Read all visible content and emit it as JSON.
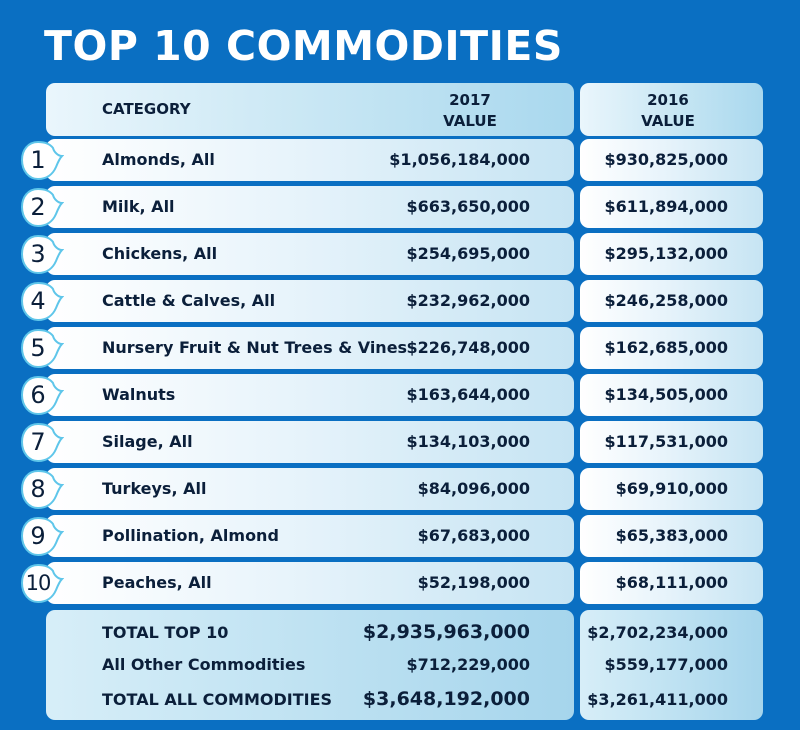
{
  "title": "TOP 10 COMMODITIES",
  "header": {
    "category": "CATEGORY",
    "year_2017": "2017",
    "year_2016": "2016",
    "value_label": "VALUE"
  },
  "rows": [
    {
      "rank": "1",
      "category": "Almonds, All",
      "value_2017": "$1,056,184,000",
      "value_2016": "$930,825,000"
    },
    {
      "rank": "2",
      "category": "Milk, All",
      "value_2017": "$663,650,000",
      "value_2016": "$611,894,000"
    },
    {
      "rank": "3",
      "category": "Chickens, All",
      "value_2017": "$254,695,000",
      "value_2016": "$295,132,000"
    },
    {
      "rank": "4",
      "category": "Cattle & Calves, All",
      "value_2017": "$232,962,000",
      "value_2016": "$246,258,000"
    },
    {
      "rank": "5",
      "category": "Nursery Fruit & Nut Trees & Vines",
      "value_2017": "$226,748,000",
      "value_2016": "$162,685,000"
    },
    {
      "rank": "6",
      "category": "Walnuts",
      "value_2017": "$163,644,000",
      "value_2016": "$134,505,000"
    },
    {
      "rank": "7",
      "category": "Silage, All",
      "value_2017": "$134,103,000",
      "value_2016": "$117,531,000"
    },
    {
      "rank": "8",
      "category": "Turkeys, All",
      "value_2017": "$84,096,000",
      "value_2016": "$69,910,000"
    },
    {
      "rank": "9",
      "category": "Pollination, Almond",
      "value_2017": "$67,683,000",
      "value_2016": "$65,383,000"
    },
    {
      "rank": "10",
      "category": "Peaches, All",
      "value_2017": "$52,198,000",
      "value_2016": "$68,111,000"
    }
  ],
  "totals": [
    {
      "label": "TOTAL TOP 10",
      "value_2017": "$2,935,963,000",
      "value_2016": "$2,702,234,000"
    },
    {
      "label": "All Other Commodities",
      "value_2017": "$712,229,000",
      "value_2016": "$559,177,000"
    },
    {
      "label": "TOTAL ALL COMMODITIES",
      "value_2017": "$3,648,192,000",
      "value_2016": "$3,261,411,000"
    }
  ],
  "colors": {
    "background": "#0a6fc2",
    "text": "#0b1f3a",
    "badge_fill": "#ffffff",
    "badge_stroke": "#5fc6ea"
  },
  "icons": {
    "rank_badge": "drop-badge-icon"
  }
}
